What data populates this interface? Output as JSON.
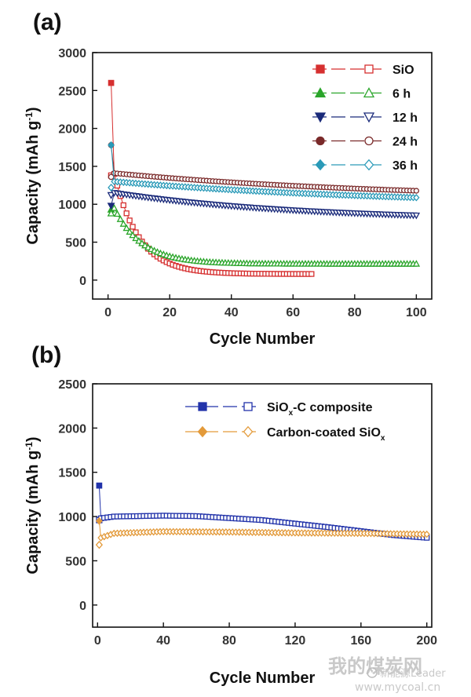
{
  "chart_data": [
    {
      "panel": "(a)",
      "type": "scatter",
      "xlabel": "Cycle Number",
      "ylabel": "Capacity (mAh g",
      "ylabel_sup": "-1",
      "ylabel_end": ")",
      "xlim": [
        -5,
        105
      ],
      "ylim": [
        -250,
        3000
      ],
      "xticks": [
        0,
        20,
        40,
        60,
        80,
        100
      ],
      "yticks": [
        0,
        500,
        1000,
        1500,
        2000,
        2500,
        3000
      ],
      "legend_position": "top-right",
      "series": [
        {
          "name": "SiO",
          "color": "#d62f2f",
          "marker_charge": "square-filled",
          "marker_discharge": "square-open",
          "charge_first": 2600,
          "discharge_first": 1380,
          "start": 1400,
          "end": 80,
          "decay_cycles": 8,
          "last_cycle": 66
        },
        {
          "name": "6 h",
          "color": "#2aa52a",
          "marker_charge": "triangle-up-filled",
          "marker_discharge": "triangle-up-open",
          "charge_first": 930,
          "discharge_first": 880,
          "start": 950,
          "end": 215,
          "decay_cycles": 9,
          "last_cycle": 100
        },
        {
          "name": "12 h",
          "color": "#1a2a7a",
          "marker_charge": "triangle-down-filled",
          "marker_discharge": "triangle-down-open",
          "charge_first": 980,
          "discharge_first": 1120,
          "start": 1150,
          "end": 780,
          "decay_cycles": 60,
          "last_cycle": 100
        },
        {
          "name": "24 h",
          "color": "#7a2a2a",
          "marker_charge": "circle-filled",
          "marker_discharge": "circle-open",
          "charge_first": 1780,
          "discharge_first": 1360,
          "start": 1410,
          "end": 1060,
          "decay_cycles": 90,
          "last_cycle": 100
        },
        {
          "name": "36 h",
          "color": "#2a9ab8",
          "marker_charge": "diamond-filled",
          "marker_discharge": "diamond-open",
          "charge_first": 1780,
          "discharge_first": 1220,
          "start": 1300,
          "end": 970,
          "decay_cycles": 95,
          "last_cycle": 100
        }
      ]
    },
    {
      "panel": "(b)",
      "type": "scatter",
      "xlabel": "Cycle Number",
      "ylabel": "Capacity (mAh g",
      "ylabel_sup": "-1",
      "ylabel_end": ")",
      "xlim": [
        -3,
        203
      ],
      "ylim": [
        -250,
        2500
      ],
      "xticks": [
        0,
        40,
        80,
        120,
        160,
        200
      ],
      "yticks": [
        0,
        500,
        1000,
        1500,
        2000,
        2500
      ],
      "legend_position": "top-right",
      "series": [
        {
          "name": "SiO",
          "name_sub": "x",
          "name_end": "-C composite",
          "color": "#2233aa",
          "marker_charge": "square-filled",
          "marker_discharge": "square-open",
          "charge_first": 1350,
          "discharge_first": 960,
          "profile": [
            [
              2,
              980
            ],
            [
              10,
              1000
            ],
            [
              40,
              1010
            ],
            [
              60,
              1005
            ],
            [
              100,
              960
            ],
            [
              140,
              880
            ],
            [
              180,
              790
            ],
            [
              200,
              760
            ]
          ]
        },
        {
          "name": "Carbon-coated SiO",
          "name_sub": "x",
          "name_end": "",
          "color": "#e39a3a",
          "marker_charge": "diamond-filled",
          "marker_discharge": "diamond-open",
          "charge_first": 950,
          "discharge_first": 680,
          "profile": [
            [
              2,
              760
            ],
            [
              10,
              810
            ],
            [
              40,
              830
            ],
            [
              80,
              825
            ],
            [
              120,
              815
            ],
            [
              160,
              810
            ],
            [
              200,
              800
            ]
          ]
        }
      ]
    }
  ],
  "watermark": {
    "site": "我的煤炭网",
    "site_url": "www.mycoal.cn",
    "account": "新能源Leader"
  }
}
